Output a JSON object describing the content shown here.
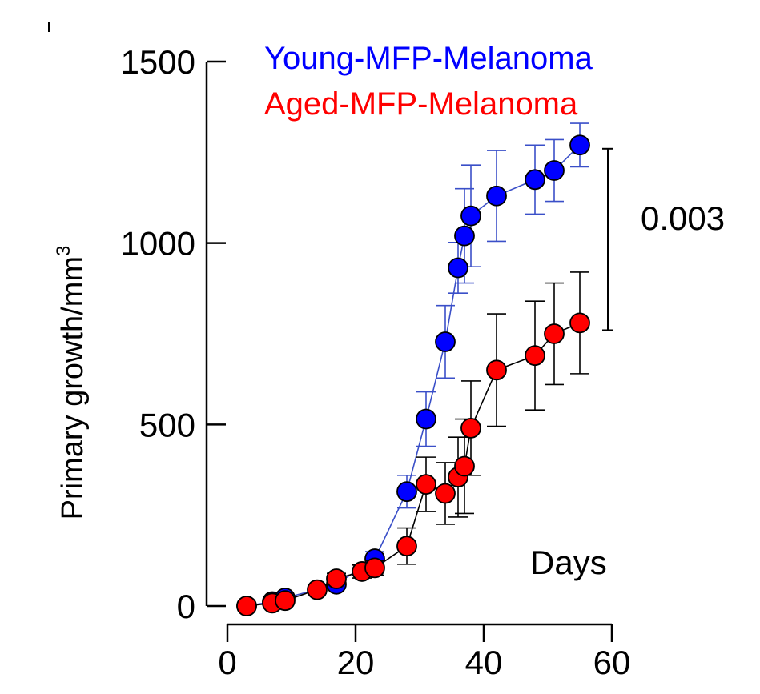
{
  "chart_data": {
    "type": "line",
    "title": "",
    "xlabel": "Days",
    "ylabel": "Primary growth/mm",
    "ylabel_superscript": "3",
    "xlim": [
      0,
      60
    ],
    "ylim": [
      0,
      1500
    ],
    "xticks": [
      0,
      20,
      40,
      60
    ],
    "yticks": [
      0,
      500,
      1000,
      1500
    ],
    "grid": false,
    "legend_position": "top",
    "series": [
      {
        "name": "Young-MFP-Melanoma",
        "color": "#0000ff",
        "line_color": "#3a4fc8",
        "x": [
          3,
          7,
          9,
          17,
          23,
          28,
          31,
          34,
          36,
          37,
          38,
          42,
          48,
          51,
          55
        ],
        "y": [
          0,
          12,
          22,
          60,
          130,
          315,
          515,
          728,
          932,
          1020,
          1075,
          1130,
          1175,
          1200,
          1270
        ],
        "err": [
          0,
          4,
          6,
          12,
          20,
          45,
          75,
          100,
          70,
          130,
          140,
          125,
          95,
          85,
          60
        ]
      },
      {
        "name": "Aged-MFP-Melanoma",
        "color": "#ff0000",
        "line_color": "#000000",
        "x": [
          3,
          7,
          9,
          14,
          17,
          21,
          23,
          28,
          31,
          34,
          36,
          37,
          38,
          42,
          48,
          51,
          55
        ],
        "y": [
          0,
          8,
          15,
          45,
          75,
          95,
          105,
          165,
          335,
          310,
          355,
          385,
          490,
          650,
          690,
          750,
          780
        ],
        "err": [
          0,
          3,
          5,
          10,
          15,
          18,
          20,
          50,
          75,
          85,
          110,
          130,
          130,
          155,
          150,
          140,
          140
        ]
      }
    ],
    "annotations": [
      {
        "text": "0.003",
        "bracket_y": [
          760,
          1260
        ],
        "x": 60
      }
    ]
  }
}
